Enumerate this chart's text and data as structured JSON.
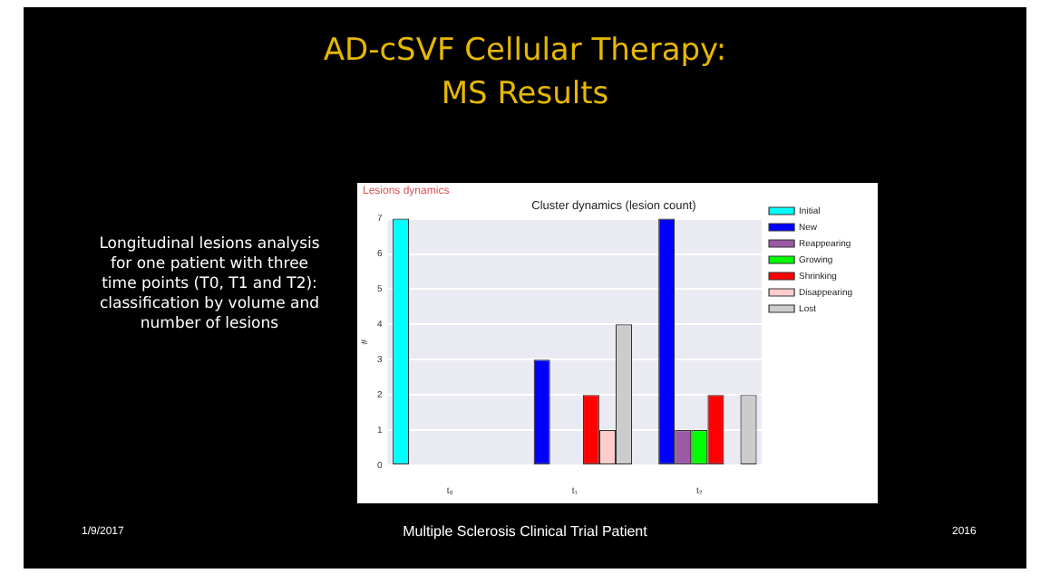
{
  "chart_data": {
    "type": "bar",
    "title": "AD-cSVF Cellular Therapy: MS Results",
    "subtitle": "Cluster dynamics (lesion count)",
    "ylabel": "#",
    "categories": [
      "t₀",
      "t₁",
      "t₂"
    ],
    "series": [
      {
        "name": "Initial",
        "color": "#00ffff",
        "values": [
          7,
          0,
          0
        ]
      },
      {
        "name": "New",
        "color": "#0000ff",
        "values": [
          0,
          3,
          7
        ]
      },
      {
        "name": "Reappearing",
        "color": "#9b59a6",
        "values": [
          0,
          0,
          1
        ]
      },
      {
        "name": "Growing",
        "color": "#00ff00",
        "values": [
          0,
          0,
          1
        ]
      },
      {
        "name": "Shrinking",
        "color": "#ff0000",
        "values": [
          0,
          2,
          2
        ]
      },
      {
        "name": "Disappearing",
        "color": "#ffcccc",
        "values": [
          0,
          1,
          0
        ]
      },
      {
        "name": "Lost",
        "color": "#cccccc",
        "values": [
          0,
          4,
          2
        ]
      }
    ],
    "ylim": [
      0,
      7
    ],
    "yticks": [
      0,
      1,
      2,
      3,
      4,
      5,
      6,
      7
    ],
    "grid": "y",
    "legend": "right",
    "annotations": [
      "Lesions dynamics",
      "Longitudinal lesions analysis for one patient with three time points (T0, T1 and T2): classification by volume and number of lesions",
      "1/9/2017",
      "Multiple Sclerosis Clinical Trial Patient",
      "2016"
    ]
  }
}
